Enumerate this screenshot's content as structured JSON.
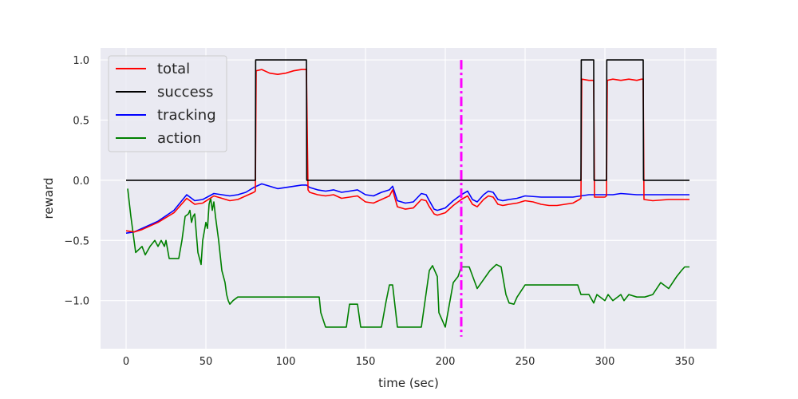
{
  "chart_data": {
    "type": "line",
    "title": "",
    "xlabel": "time (sec)",
    "ylabel": "reward",
    "xlim": [
      -16,
      370
    ],
    "ylim": [
      -1.4,
      1.1
    ],
    "xticks": [
      0,
      50,
      100,
      150,
      200,
      250,
      300,
      350
    ],
    "xtick_labels": [
      "0",
      "50",
      "100",
      "150",
      "200",
      "250",
      "300",
      "350"
    ],
    "yticks": [
      -1.0,
      -0.5,
      0.0,
      0.5,
      1.0
    ],
    "ytick_labels": [
      "−1.0",
      "−0.5",
      "0.0",
      "0.5",
      "1.0"
    ],
    "grid": true,
    "legend_position": "top-left",
    "background_color": "#eaeaf2",
    "grid_color": "#ffffff",
    "marker_line": {
      "x": 210,
      "y_range": [
        -1.3,
        1.0
      ],
      "color": "#ff00ff",
      "style": "dash-dot"
    },
    "series": [
      {
        "name": "total",
        "color": "#ff0000",
        "x": [
          0,
          5,
          10,
          20,
          30,
          38,
          43,
          48,
          55,
          60,
          65,
          70,
          75,
          80,
          81,
          81.5,
          85,
          90,
          95,
          100,
          105,
          110,
          113,
          114,
          115,
          120,
          125,
          130,
          135,
          140,
          145,
          150,
          155,
          160,
          165,
          167,
          170,
          175,
          180,
          185,
          188,
          190,
          193,
          195,
          200,
          205,
          210,
          214,
          217,
          220,
          224,
          227,
          230,
          233,
          236,
          240,
          245,
          250,
          255,
          260,
          265,
          270,
          275,
          280,
          284,
          285,
          285.5,
          290,
          293,
          293.5,
          300,
          301,
          301.5,
          305,
          310,
          315,
          320,
          323,
          324,
          324.5,
          330,
          340,
          350,
          353
        ],
        "y": [
          -0.42,
          -0.43,
          -0.41,
          -0.35,
          -0.27,
          -0.15,
          -0.2,
          -0.19,
          -0.13,
          -0.15,
          -0.17,
          -0.16,
          -0.13,
          -0.1,
          -0.09,
          0.91,
          0.92,
          0.89,
          0.88,
          0.89,
          0.91,
          0.92,
          0.92,
          -0.08,
          -0.1,
          -0.12,
          -0.13,
          -0.12,
          -0.15,
          -0.14,
          -0.13,
          -0.18,
          -0.19,
          -0.16,
          -0.13,
          -0.08,
          -0.22,
          -0.24,
          -0.23,
          -0.16,
          -0.17,
          -0.22,
          -0.28,
          -0.29,
          -0.27,
          -0.21,
          -0.16,
          -0.13,
          -0.2,
          -0.22,
          -0.16,
          -0.13,
          -0.14,
          -0.2,
          -0.21,
          -0.2,
          -0.19,
          -0.17,
          -0.18,
          -0.2,
          -0.21,
          -0.21,
          -0.2,
          -0.19,
          -0.16,
          -0.15,
          0.84,
          0.83,
          0.83,
          -0.14,
          -0.14,
          -0.13,
          0.83,
          0.84,
          0.83,
          0.84,
          0.83,
          0.84,
          0.84,
          -0.16,
          -0.17,
          -0.16,
          -0.16,
          -0.16
        ]
      },
      {
        "name": "success",
        "color": "#000000",
        "x": [
          0,
          81,
          81.2,
          113,
          113.2,
          285,
          285.2,
          293,
          293.2,
          301,
          301.2,
          324,
          324.2,
          353
        ],
        "y": [
          0,
          0,
          1,
          1,
          0,
          0,
          1,
          1,
          0,
          0,
          1,
          1,
          0,
          0
        ]
      },
      {
        "name": "tracking",
        "color": "#0000ff",
        "x": [
          0,
          5,
          10,
          20,
          30,
          38,
          43,
          48,
          55,
          60,
          65,
          70,
          75,
          80,
          85,
          90,
          95,
          100,
          105,
          110,
          113,
          115,
          120,
          125,
          130,
          135,
          140,
          145,
          150,
          155,
          160,
          165,
          167,
          170,
          175,
          180,
          185,
          188,
          190,
          193,
          195,
          200,
          205,
          210,
          214,
          217,
          220,
          224,
          227,
          230,
          233,
          236,
          240,
          245,
          250,
          260,
          270,
          280,
          285,
          290,
          295,
          300,
          305,
          310,
          320,
          330,
          340,
          350,
          353
        ],
        "y": [
          -0.44,
          -0.43,
          -0.4,
          -0.34,
          -0.25,
          -0.12,
          -0.17,
          -0.16,
          -0.11,
          -0.12,
          -0.13,
          -0.12,
          -0.1,
          -0.06,
          -0.03,
          -0.05,
          -0.07,
          -0.06,
          -0.05,
          -0.04,
          -0.04,
          -0.06,
          -0.08,
          -0.09,
          -0.08,
          -0.1,
          -0.09,
          -0.08,
          -0.12,
          -0.13,
          -0.1,
          -0.08,
          -0.05,
          -0.17,
          -0.19,
          -0.18,
          -0.11,
          -0.12,
          -0.17,
          -0.24,
          -0.25,
          -0.23,
          -0.17,
          -0.12,
          -0.09,
          -0.16,
          -0.18,
          -0.12,
          -0.09,
          -0.1,
          -0.16,
          -0.17,
          -0.16,
          -0.15,
          -0.13,
          -0.14,
          -0.14,
          -0.14,
          -0.13,
          -0.12,
          -0.12,
          -0.12,
          -0.12,
          -0.11,
          -0.12,
          -0.12,
          -0.12,
          -0.12,
          -0.12
        ]
      },
      {
        "name": "action",
        "color": "#008000",
        "x": [
          1,
          3,
          5,
          6,
          10,
          12,
          15,
          18,
          20,
          22,
          24,
          25,
          27,
          30,
          33,
          35,
          37,
          39,
          40,
          41,
          42,
          43,
          45,
          47,
          48,
          50,
          51,
          52,
          53,
          54,
          55,
          56,
          58,
          60,
          62,
          63,
          64,
          65,
          67,
          70,
          80,
          90,
          100,
          110,
          121,
          122,
          125,
          130,
          138,
          140,
          145,
          147,
          150,
          160,
          163,
          165,
          167,
          170,
          171,
          180,
          185,
          190,
          192,
          195,
          196,
          200,
          205,
          208,
          210,
          212,
          215,
          220,
          228,
          232,
          235,
          238,
          240,
          243,
          245,
          250,
          260,
          270,
          280,
          283,
          285,
          290,
          293,
          295,
          300,
          302,
          305,
          310,
          312,
          315,
          320,
          325,
          330,
          335,
          340,
          345,
          348,
          350,
          353
        ],
        "y": [
          -0.07,
          -0.3,
          -0.5,
          -0.6,
          -0.55,
          -0.62,
          -0.55,
          -0.5,
          -0.55,
          -0.5,
          -0.55,
          -0.5,
          -0.65,
          -0.65,
          -0.65,
          -0.5,
          -0.3,
          -0.28,
          -0.25,
          -0.35,
          -0.3,
          -0.28,
          -0.6,
          -0.7,
          -0.5,
          -0.35,
          -0.4,
          -0.2,
          -0.15,
          -0.25,
          -0.18,
          -0.3,
          -0.5,
          -0.75,
          -0.85,
          -0.95,
          -1.0,
          -1.03,
          -1.0,
          -0.97,
          -0.97,
          -0.97,
          -0.97,
          -0.97,
          -0.97,
          -1.1,
          -1.22,
          -1.22,
          -1.22,
          -1.03,
          -1.03,
          -1.22,
          -1.22,
          -1.22,
          -1.0,
          -0.87,
          -0.87,
          -1.22,
          -1.22,
          -1.22,
          -1.22,
          -0.75,
          -0.71,
          -0.8,
          -1.1,
          -1.22,
          -0.85,
          -0.8,
          -0.72,
          -0.72,
          -0.72,
          -0.9,
          -0.75,
          -0.7,
          -0.72,
          -0.95,
          -1.02,
          -1.03,
          -0.97,
          -0.87,
          -0.87,
          -0.87,
          -0.87,
          -0.87,
          -0.95,
          -0.95,
          -1.02,
          -0.95,
          -1.0,
          -0.95,
          -1.0,
          -0.95,
          -1.0,
          -0.95,
          -0.97,
          -0.97,
          -0.95,
          -0.85,
          -0.9,
          -0.8,
          -0.75,
          -0.72,
          -0.72
        ]
      }
    ]
  }
}
